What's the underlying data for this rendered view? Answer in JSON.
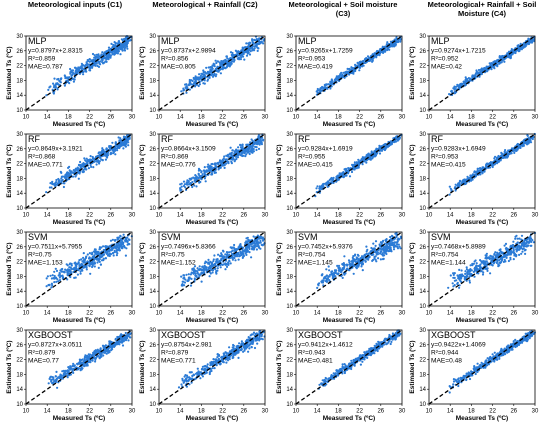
{
  "column_titles": [
    "Meteorological inputs (C1)",
    "Meteorological + Rainfall (C2)",
    "Meteorological + Soil moisture (C3)",
    "Meteorological+ Rainfall + Soil Moisture (C4)"
  ],
  "colors": {
    "points": "#2b7bd6",
    "one_to_one_line": "#000000",
    "frame": "#000000"
  },
  "chart_data": [
    {
      "type": "scatter",
      "model": "MLP",
      "column": "C1",
      "equation": "y=0.8797x+2.8315",
      "r2": "R²=0.859",
      "mae": "MAE=0.787",
      "slope": 0.8797,
      "intercept": 2.8315,
      "xlabel": "Measured Ts (ºC)",
      "ylabel": "Estimated Ts (ºC)",
      "xlim": [
        10,
        30
      ],
      "ylim": [
        10,
        30
      ],
      "xticks": [
        10,
        14,
        18,
        22,
        26,
        30
      ],
      "yticks": [
        10,
        14,
        18,
        22,
        26,
        30
      ],
      "scatter_sd": 1.5
    },
    {
      "type": "scatter",
      "model": "MLP",
      "column": "C2",
      "equation": "y=0.8737x+2.9894",
      "r2": "R²=0.856",
      "mae": "MAE=0.805",
      "slope": 0.8737,
      "intercept": 2.9894,
      "xlabel": "Measured Ts (ºC)",
      "ylabel": "Estimated Ts (ºC)",
      "xlim": [
        10,
        30
      ],
      "ylim": [
        10,
        30
      ],
      "xticks": [
        10,
        14,
        18,
        22,
        26,
        30
      ],
      "yticks": [
        10,
        14,
        18,
        22,
        26,
        30
      ],
      "scatter_sd": 1.5
    },
    {
      "type": "scatter",
      "model": "MLP",
      "column": "C3",
      "equation": "y=0.9265x+1.7259",
      "r2": "R²=0.953",
      "mae": "MAE=0.419",
      "slope": 0.9265,
      "intercept": 1.7259,
      "xlabel": "Measured Ts (ºC)",
      "ylabel": "Estimated Ts (ºC)",
      "xlim": [
        10,
        30
      ],
      "ylim": [
        10,
        30
      ],
      "xticks": [
        10,
        14,
        18,
        22,
        26,
        30
      ],
      "yticks": [
        10,
        14,
        18,
        22,
        26,
        30
      ],
      "scatter_sd": 0.8
    },
    {
      "type": "scatter",
      "model": "MLP",
      "column": "C4",
      "equation": "y=0.9274x+1.7215",
      "r2": "R²=0.952",
      "mae": "MAE=0.42",
      "slope": 0.9274,
      "intercept": 1.7215,
      "xlabel": "Measured Ts (ºC)",
      "ylabel": "Estimated Ts (ºC)",
      "xlim": [
        10,
        30
      ],
      "ylim": [
        10,
        30
      ],
      "xticks": [
        10,
        14,
        18,
        22,
        26,
        30
      ],
      "yticks": [
        10,
        14,
        18,
        22,
        26,
        30
      ],
      "scatter_sd": 0.8
    },
    {
      "type": "scatter",
      "model": "RF",
      "column": "C1",
      "equation": "y=0.8649x+3.1921",
      "r2": "R²=0.868",
      "mae": "MAE=0.771",
      "slope": 0.8649,
      "intercept": 3.1921,
      "xlabel": "Measured Ts (ºC)",
      "ylabel": "Estimated Ts (ºC)",
      "xlim": [
        10,
        30
      ],
      "ylim": [
        10,
        30
      ],
      "xticks": [
        10,
        14,
        18,
        22,
        26,
        30
      ],
      "yticks": [
        10,
        14,
        18,
        22,
        26,
        30
      ],
      "scatter_sd": 1.4
    },
    {
      "type": "scatter",
      "model": "RF",
      "column": "C2",
      "equation": "y=0.8664x+3.1509",
      "r2": "R²=0.869",
      "mae": "MAE=0.776",
      "slope": 0.8664,
      "intercept": 3.1509,
      "xlabel": "Measured Ts (ºC)",
      "ylabel": "Estimated Ts (ºC)",
      "xlim": [
        10,
        30
      ],
      "ylim": [
        10,
        30
      ],
      "xticks": [
        10,
        14,
        18,
        22,
        26,
        30
      ],
      "yticks": [
        10,
        14,
        18,
        22,
        26,
        30
      ],
      "scatter_sd": 1.4
    },
    {
      "type": "scatter",
      "model": "RF",
      "column": "C3",
      "equation": "y=0.9284x+1.6919",
      "r2": "R²=0.955",
      "mae": "MAE=0.415",
      "slope": 0.9284,
      "intercept": 1.6919,
      "xlabel": "Measured Ts (ºC)",
      "ylabel": "Estimated Ts (ºC)",
      "xlim": [
        10,
        30
      ],
      "ylim": [
        10,
        30
      ],
      "xticks": [
        10,
        14,
        18,
        22,
        26,
        30
      ],
      "yticks": [
        10,
        14,
        18,
        22,
        26,
        30
      ],
      "scatter_sd": 0.8
    },
    {
      "type": "scatter",
      "model": "RF",
      "column": "C4",
      "equation": "y=0.9283x+1.6949",
      "r2": "R²=0.953",
      "mae": "MAE=0.415",
      "slope": 0.9283,
      "intercept": 1.6949,
      "xlabel": "Measured Ts (ºC)",
      "ylabel": "Estimated Ts (ºC)",
      "xlim": [
        10,
        30
      ],
      "ylim": [
        10,
        30
      ],
      "xticks": [
        10,
        14,
        18,
        22,
        26,
        30
      ],
      "yticks": [
        10,
        14,
        18,
        22,
        26,
        30
      ],
      "scatter_sd": 0.8
    },
    {
      "type": "scatter",
      "model": "SVM",
      "column": "C1",
      "equation": "y=0.7511x+5.7955",
      "r2": "R²=0.75",
      "mae": "MAE=1.153",
      "slope": 0.7511,
      "intercept": 5.7955,
      "xlabel": "Measured Ts (ºC)",
      "ylabel": "Estimated Ts (ºC)",
      "xlim": [
        10,
        30
      ],
      "ylim": [
        10,
        30
      ],
      "xticks": [
        10,
        14,
        18,
        22,
        26,
        30
      ],
      "yticks": [
        10,
        14,
        18,
        22,
        26,
        30
      ],
      "scatter_sd": 1.8
    },
    {
      "type": "scatter",
      "model": "SVM",
      "column": "C2",
      "equation": "y=0.7496x+5.8366",
      "r2": "R²=0.75",
      "mae": "MAE=1.152",
      "slope": 0.7496,
      "intercept": 5.8366,
      "xlabel": "Measured Ts (ºC)",
      "ylabel": "Estimated Ts (ºC)",
      "xlim": [
        10,
        30
      ],
      "ylim": [
        10,
        30
      ],
      "xticks": [
        10,
        14,
        18,
        22,
        26,
        30
      ],
      "yticks": [
        10,
        14,
        18,
        22,
        26,
        30
      ],
      "scatter_sd": 1.8
    },
    {
      "type": "scatter",
      "model": "SVM",
      "column": "C3",
      "equation": "y=0.7452x+5.9376",
      "r2": "R²=0.754",
      "mae": "MAE=1.145",
      "slope": 0.7452,
      "intercept": 5.9376,
      "xlabel": "Measured Ts (ºC)",
      "ylabel": "Estimated Ts (ºC)",
      "xlim": [
        10,
        30
      ],
      "ylim": [
        10,
        30
      ],
      "xticks": [
        10,
        14,
        18,
        22,
        26,
        30
      ],
      "yticks": [
        10,
        14,
        18,
        22,
        26,
        30
      ],
      "scatter_sd": 1.8
    },
    {
      "type": "scatter",
      "model": "SVM",
      "column": "C4",
      "equation": "y=0.7468x+5.8989",
      "r2": "R²=0.754",
      "mae": "MAE=1.144",
      "slope": 0.7468,
      "intercept": 5.8989,
      "xlabel": "Measured Ts (ºC)",
      "ylabel": "Estimated Ts (ºC)",
      "xlim": [
        10,
        30
      ],
      "ylim": [
        10,
        30
      ],
      "xticks": [
        10,
        14,
        18,
        22,
        26,
        30
      ],
      "yticks": [
        10,
        14,
        18,
        22,
        26,
        30
      ],
      "scatter_sd": 1.8
    },
    {
      "type": "scatter",
      "model": "XGBOOST",
      "column": "C1",
      "equation": "y=0.8727x+3.0511",
      "r2": "R²=0.879",
      "mae": "MAE=0.77",
      "slope": 0.8727,
      "intercept": 3.0511,
      "xlabel": "Measured Ts (ºC)",
      "ylabel": "Estimated Ts (ºC)",
      "xlim": [
        10,
        30
      ],
      "ylim": [
        10,
        30
      ],
      "xticks": [
        10,
        14,
        18,
        22,
        26,
        30
      ],
      "yticks": [
        10,
        14,
        18,
        22,
        26,
        30
      ],
      "scatter_sd": 1.3
    },
    {
      "type": "scatter",
      "model": "XGBOOST",
      "column": "C2",
      "equation": "y=0.8754x+2.981",
      "r2": "R²=0.879",
      "mae": "MAE=0.771",
      "slope": 0.8754,
      "intercept": 2.981,
      "xlabel": "Measured Ts (ºC)",
      "ylabel": "Estimated Ts (ºC)",
      "xlim": [
        10,
        30
      ],
      "ylim": [
        10,
        30
      ],
      "xticks": [
        10,
        14,
        18,
        22,
        26,
        30
      ],
      "yticks": [
        10,
        14,
        18,
        22,
        26,
        30
      ],
      "scatter_sd": 1.3
    },
    {
      "type": "scatter",
      "model": "XGBOOST",
      "column": "C3",
      "equation": "y=0.9412x+1.4612",
      "r2": "R²=0.943",
      "mae": "MAE=0.481",
      "slope": 0.9412,
      "intercept": 1.4612,
      "xlabel": "Measured Ts (ºC)",
      "ylabel": "Estimated Ts (ºC)",
      "xlim": [
        10,
        30
      ],
      "ylim": [
        10,
        30
      ],
      "xticks": [
        10,
        14,
        18,
        22,
        26,
        30
      ],
      "yticks": [
        10,
        14,
        18,
        22,
        26,
        30
      ],
      "scatter_sd": 0.85
    },
    {
      "type": "scatter",
      "model": "XGBOOST",
      "column": "C4",
      "equation": "y=0.9422x+1.4069",
      "r2": "R²=0.944",
      "mae": "MAE=0.48",
      "slope": 0.9422,
      "intercept": 1.4069,
      "xlabel": "Measured Ts (ºC)",
      "ylabel": "Estimated Ts (ºC)",
      "xlim": [
        10,
        30
      ],
      "ylim": [
        10,
        30
      ],
      "xticks": [
        10,
        14,
        18,
        22,
        26,
        30
      ],
      "yticks": [
        10,
        14,
        18,
        22,
        26,
        30
      ],
      "scatter_sd": 0.85
    }
  ]
}
